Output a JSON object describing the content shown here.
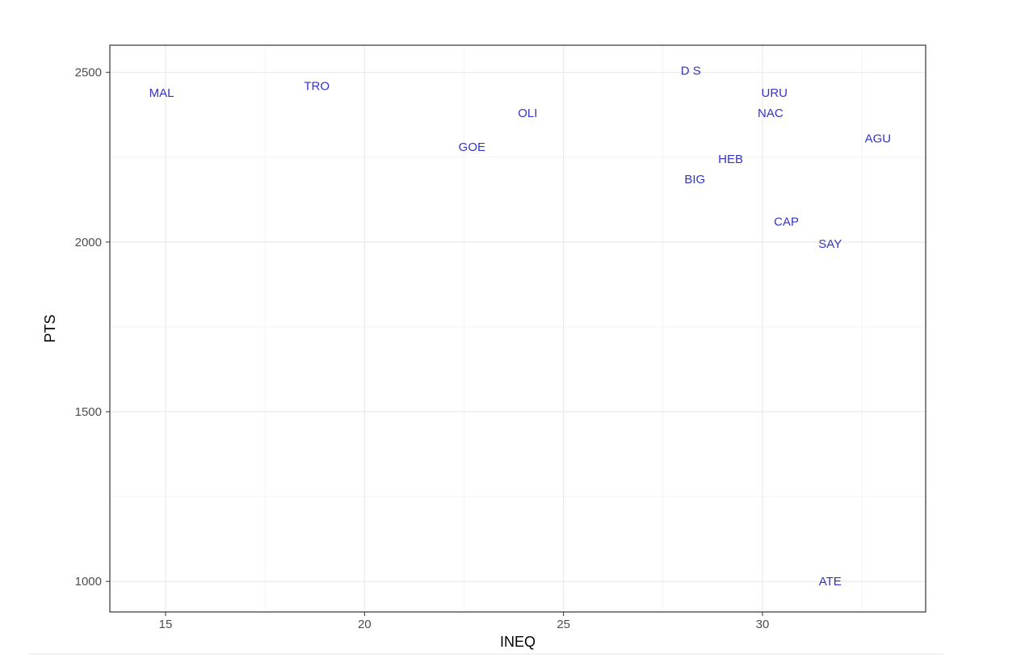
{
  "colors": {
    "point_label": "#3333cc",
    "grid_major": "#ebebeb",
    "grid_minor": "#f3f3f3",
    "panel_border": "#333333",
    "tick_text": "#4d4d4d",
    "footer_line": "#e6e6e6"
  },
  "chart_data": {
    "type": "scatter",
    "marker": "text-label",
    "xlabel": "INEQ",
    "ylabel": "PTS",
    "xlim": [
      13.6,
      34.1
    ],
    "ylim": [
      910,
      2580
    ],
    "x_ticks": [
      15,
      20,
      25,
      30
    ],
    "y_ticks": [
      1000,
      1500,
      2000,
      2500
    ],
    "x_minor_ticks": [
      17.5,
      22.5,
      27.5,
      32.5
    ],
    "y_minor_ticks": [
      1250,
      1750,
      2250
    ],
    "grid": true,
    "points": [
      {
        "label": "MAL",
        "x": 14.9,
        "y": 2440
      },
      {
        "label": "TRO",
        "x": 18.8,
        "y": 2460
      },
      {
        "label": "OLI",
        "x": 24.1,
        "y": 2380
      },
      {
        "label": "GOE",
        "x": 22.7,
        "y": 2280
      },
      {
        "label": "D S",
        "x": 28.2,
        "y": 2505
      },
      {
        "label": "URU",
        "x": 30.3,
        "y": 2440
      },
      {
        "label": "NAC",
        "x": 30.2,
        "y": 2380
      },
      {
        "label": "AGU",
        "x": 32.9,
        "y": 2305
      },
      {
        "label": "HEB",
        "x": 29.2,
        "y": 2245
      },
      {
        "label": "BIG",
        "x": 28.3,
        "y": 2185
      },
      {
        "label": "CAP",
        "x": 30.6,
        "y": 2060
      },
      {
        "label": "SAY",
        "x": 31.7,
        "y": 1995
      },
      {
        "label": "ATE",
        "x": 31.7,
        "y": 1000
      }
    ]
  }
}
